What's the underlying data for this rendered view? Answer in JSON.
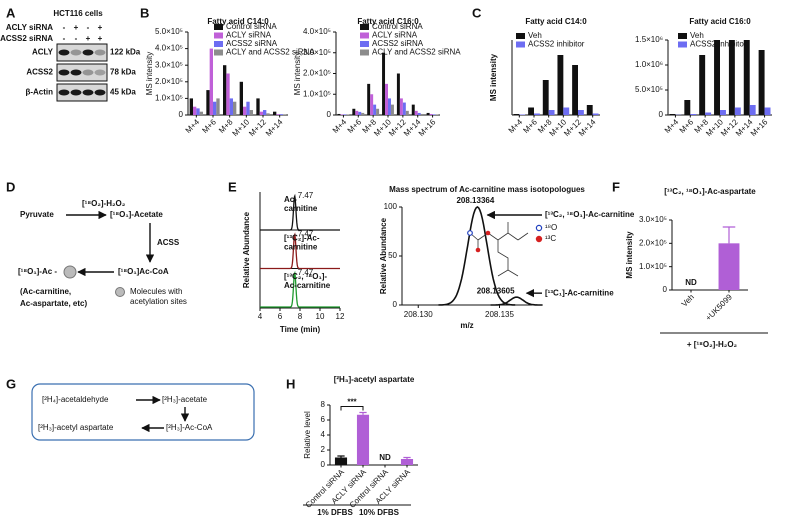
{
  "A": {
    "label": "A",
    "title": "HCT116 cells",
    "rows": [
      "ACLY siRNA",
      "ACSS2 siRNA"
    ],
    "signs": [
      [
        "-",
        "+",
        "-",
        "+"
      ],
      [
        "-",
        "-",
        "+",
        "+"
      ]
    ],
    "bands": [
      "ACLY",
      "ACSS2",
      "β-Actin"
    ],
    "sizes": [
      "122 kDa",
      "78 kDa",
      "45 kDa"
    ]
  },
  "B": {
    "label": "B",
    "charts": [
      {
        "type": "bar",
        "title": "Fatty acid C14:0",
        "ylabel": "MS intensity",
        "categories": [
          "M+4",
          "M+6",
          "M+8",
          "M+10",
          "M+12",
          "M+14"
        ],
        "series": [
          {
            "name": "Control siRNA",
            "color": "#111111",
            "values": [
              100000,
              150000,
              300000,
              200000,
              100000,
              20000
            ]
          },
          {
            "name": "ACLY siRNA",
            "color": "#c060d8",
            "values": [
              50000,
              400000,
              250000,
              50000,
              20000,
              5000
            ]
          },
          {
            "name": "ACSS2 siRNA",
            "color": "#6d6df2",
            "values": [
              40000,
              80000,
              100000,
              80000,
              30000,
              5000
            ]
          },
          {
            "name": "ACLY and ACSS2 siRNA",
            "color": "#8c8c8c",
            "values": [
              20000,
              100000,
              80000,
              30000,
              10000,
              2000
            ]
          }
        ],
        "ylim": [
          0,
          500000
        ],
        "yticks": [
          0,
          {
            "value": 100000,
            "label": "1.0×10⁵"
          },
          {
            "value": 200000,
            "label": "2.0×10⁵"
          },
          {
            "value": 300000,
            "label": "3.0×10⁵"
          },
          {
            "value": 400000,
            "label": "4.0×10⁵"
          },
          {
            "value": 500000,
            "label": "5.0×10⁵"
          }
        ]
      },
      {
        "type": "bar",
        "title": "Fatty acid C16:0",
        "ylabel": "MS intensity",
        "categories": [
          "M+4",
          "M+6",
          "M+8",
          "M+10",
          "M+12",
          "M+14",
          "M+16"
        ],
        "series": [
          {
            "name": "Control siRNA",
            "color": "#111111",
            "values": [
              5000,
              30000,
              150000,
              300000,
              200000,
              50000,
              10000
            ]
          },
          {
            "name": "ACLY siRNA",
            "color": "#c060d8",
            "values": [
              3000,
              20000,
              100000,
              150000,
              80000,
              20000,
              5000
            ]
          },
          {
            "name": "ACSS2 siRNA",
            "color": "#6d6df2",
            "values": [
              3000,
              15000,
              50000,
              80000,
              60000,
              10000,
              3000
            ]
          },
          {
            "name": "ACLY and ACSS2 siRNA",
            "color": "#8c8c8c",
            "values": [
              2000,
              10000,
              30000,
              50000,
              20000,
              5000,
              2000
            ]
          }
        ],
        "ylim": [
          0,
          400000
        ],
        "yticks": [
          0,
          {
            "value": 100000,
            "label": "1.0×10⁵"
          },
          {
            "value": 200000,
            "label": "2.0×10⁵"
          },
          {
            "value": 300000,
            "label": "3.0×10⁵"
          },
          {
            "value": 400000,
            "label": "4.0×10⁵"
          }
        ]
      }
    ]
  },
  "C": {
    "label": "C",
    "charts": [
      {
        "type": "bar",
        "title": "Fatty acid C14:0",
        "ylabel": "MS intensity",
        "categories": [
          "M+4",
          "M+6",
          "M+8",
          "M+10",
          "M+12",
          "M+14"
        ],
        "series": [
          {
            "name": "Veh",
            "color": "#111111",
            "values": [
              2000,
              15000,
              70000,
              120000,
              100000,
              20000
            ]
          },
          {
            "name": "ACSS2 inhibitor",
            "color": "#6d6df2",
            "values": [
              1000,
              3000,
              10000,
              15000,
              10000,
              3000
            ]
          }
        ],
        "ylim": [
          0,
          150000
        ]
      },
      {
        "type": "bar",
        "title": "Fatty acid C16:0",
        "categories": [
          "M+4",
          "M+6",
          "M+8",
          "M+10",
          "M+12",
          "M+14",
          "M+16"
        ],
        "series": [
          {
            "name": "Veh",
            "color": "#111111",
            "values": [
              20000,
              300000,
              1200000,
              1500000,
              1500000,
              1500000,
              1300000
            ]
          },
          {
            "name": "ACSS2 inhibitor",
            "color": "#6d6df2",
            "values": [
              5000,
              20000,
              50000,
              100000,
              150000,
              200000,
              150000
            ]
          }
        ],
        "ylim": [
          0,
          1500000
        ],
        "yticks": [
          0,
          {
            "value": 500000,
            "label": "5.0×10⁵"
          },
          {
            "value": 1000000,
            "label": "1.0×10⁶"
          },
          {
            "value": 1500000,
            "label": "1.5×10⁶"
          }
        ]
      }
    ]
  },
  "D": {
    "label": "D",
    "pyruvate": "Pyruvate",
    "oxidant": "[¹⁸O₂]-H₂O₂",
    "acetate": "[¹⁸O₁]-Acetate",
    "enzyme": "ACSS",
    "acoa": "[¹⁸O₁]Ac-CoA",
    "acetyl": "[¹⁸O₁]-Ac -",
    "products": [
      "(Ac-carnitine,",
      "Ac-aspartate, etc)"
    ],
    "legend": [
      "Molecules with",
      "acetylation sites"
    ]
  },
  "E": {
    "label": "E",
    "chromatogram": {
      "ylabel": "Relative Abundance",
      "xlabel": "Time (min)",
      "xlim": [
        4,
        12
      ],
      "xticks": [
        4,
        6,
        8,
        10,
        12
      ],
      "traces": [
        {
          "name": [
            "Ac-",
            "carnitine"
          ],
          "color": "#111111",
          "peak": 7.47
        },
        {
          "name": [
            "[¹³C₂]-Ac-",
            "carnitine"
          ],
          "color": "#8b1a1a",
          "peak": 7.47
        },
        {
          "name": [
            "[¹³C₂, ¹⁸O₁]-",
            "Ac-carnitine"
          ],
          "color": "#1f9a2e",
          "peak": 7.47
        }
      ]
    },
    "spectrum": {
      "title": "Mass spectrum of Ac-carnitine  mass isotopologues",
      "ylabel": "Relative Abundance",
      "xlabel": "m/z",
      "xlim": [
        208.129,
        208.137
      ],
      "xticks": [
        {
          "value": 208.13,
          "label": "208.130"
        },
        {
          "value": 208.135,
          "label": "208.135"
        }
      ],
      "ylim": [
        0,
        100
      ],
      "yticks": [
        0,
        50,
        100
      ],
      "peaks": [
        {
          "mz": 208.13364,
          "abundance": 100,
          "name": "[¹³C₂, ¹⁸O₁]-Ac-carnitine"
        },
        {
          "mz": 208.13605,
          "abundance": 8,
          "name": "[¹³C₁]-Ac-carnitine"
        }
      ],
      "legend": [
        {
          "symbol": "¹⁸O",
          "color": "#1f3fbf"
        },
        {
          "symbol": "¹³C",
          "color": "#d62020"
        }
      ]
    }
  },
  "F": {
    "label": "F",
    "footer": "+ [¹⁸O₂]-H₂O₂",
    "chart": {
      "type": "bar",
      "title": "[¹³C₂, ¹⁸O₁]-Ac-aspartate",
      "ylabel": "MS intensity",
      "categories": [
        "Veh",
        "+UK5099"
      ],
      "values": [
        null,
        200000
      ],
      "errors": [
        null,
        70000
      ],
      "color": "#b05fd6",
      "annotation": "ND",
      "ylim": [
        0,
        300000
      ],
      "yticks": [
        0,
        {
          "value": 100000,
          "label": "1.0×10⁵"
        },
        {
          "value": 200000,
          "label": "2.0×10⁵"
        },
        {
          "value": 300000,
          "label": "3.0×10⁵"
        }
      ]
    }
  },
  "G": {
    "label": "G",
    "nodes": [
      "[²H₄]-acetaldehyde",
      "[²H₃]-acetate",
      "[²H₃]-Ac-CoA",
      "[²H₃]-acetyl aspartate"
    ]
  },
  "H": {
    "label": "H",
    "groups": [
      "1% DFBS",
      "10% DFBS"
    ],
    "chart": {
      "type": "bar",
      "title": "[²H₃]-acetyl aspartate",
      "ylabel": "Relative level",
      "categories": [
        "Control siRNA",
        "ACLY siRNA",
        "Control siRNA",
        "ACLY siRNA"
      ],
      "values": [
        1,
        6.7,
        null,
        0.8
      ],
      "errors": [
        0.2,
        0.3,
        null,
        0.2
      ],
      "colors": [
        "#111111",
        "#b05fd6",
        "#b05fd6",
        "#b05fd6"
      ],
      "annotation": "ND",
      "significance": "***",
      "ylim": [
        0,
        8
      ],
      "yticks": [
        0,
        2,
        4,
        6,
        8
      ]
    }
  }
}
